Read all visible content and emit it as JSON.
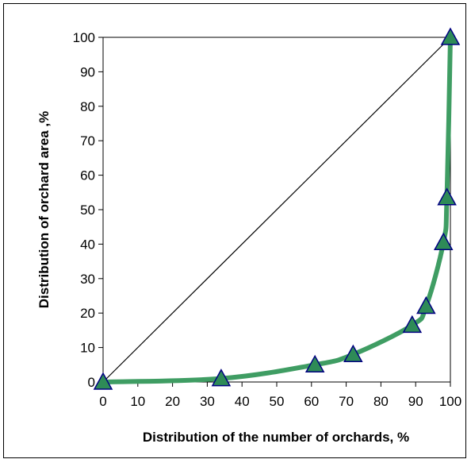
{
  "chart_data": {
    "type": "line",
    "title": "",
    "xlabel": "Distribution of the number of orchards, %",
    "ylabel": "Distribution of orchard area ,%",
    "xlim": [
      0,
      100
    ],
    "ylim": [
      0,
      100
    ],
    "xticks": [
      "0",
      "10",
      "20",
      "30",
      "40",
      "50",
      "60",
      "70",
      "80",
      "90",
      "100"
    ],
    "yticks": [
      "0",
      "10",
      "20",
      "30",
      "40",
      "50",
      "60",
      "70",
      "80",
      "90",
      "100"
    ],
    "grid": false,
    "legend": "none",
    "series": [
      {
        "x": [
          0,
          34,
          61,
          72,
          89,
          93,
          98,
          99,
          100
        ],
        "y": [
          0,
          1,
          5,
          8,
          16.5,
          22,
          40.5,
          53.5,
          100
        ],
        "color": "#3f9d63",
        "marker": "triangle",
        "marker_color": "#2e8b57"
      },
      {
        "x": [
          0,
          100
        ],
        "y": [
          0,
          100
        ],
        "color": "#000000",
        "marker": "none"
      }
    ]
  }
}
